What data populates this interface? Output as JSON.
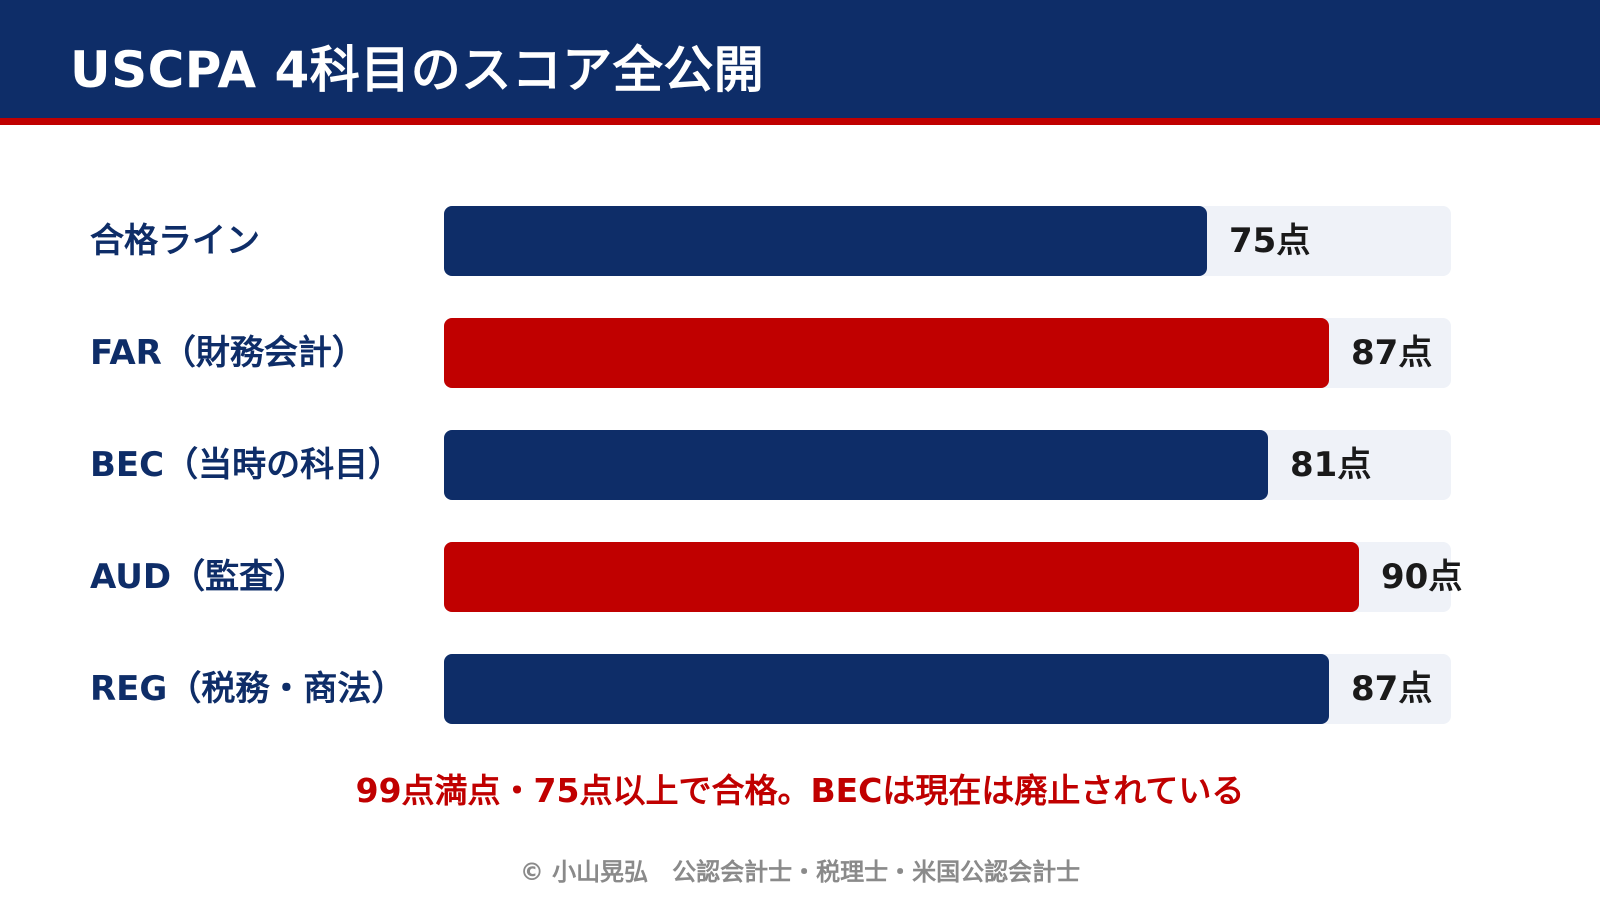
{
  "title": "USCPA 4科目のスコア全公開",
  "colors": {
    "header_bg": "#0e2d68",
    "header_stripe": "#c00000",
    "navy": "#0e2d68",
    "red": "#c00000",
    "track": "#eff2f8"
  },
  "chart_data": {
    "type": "bar",
    "orientation": "horizontal",
    "xlim": [
      0,
      99
    ],
    "grid": false,
    "categories": [
      "合格ライン",
      "FAR（財務会計）",
      "BEC（当時の科目）",
      "AUD（監査）",
      "REG（税務・商法）"
    ],
    "values": [
      75,
      87,
      81,
      90,
      87
    ],
    "value_labels": [
      "75点",
      "87点",
      "81点",
      "90点",
      "87点"
    ],
    "bar_colors": [
      "#0e2d68",
      "#c00000",
      "#0e2d68",
      "#c00000",
      "#0e2d68"
    ]
  },
  "note": "99点満点・75点以上で合格。BECは現在は廃止されている",
  "copyright": "© 小山晃弘　公認会計士・税理士・米国公認会計士"
}
